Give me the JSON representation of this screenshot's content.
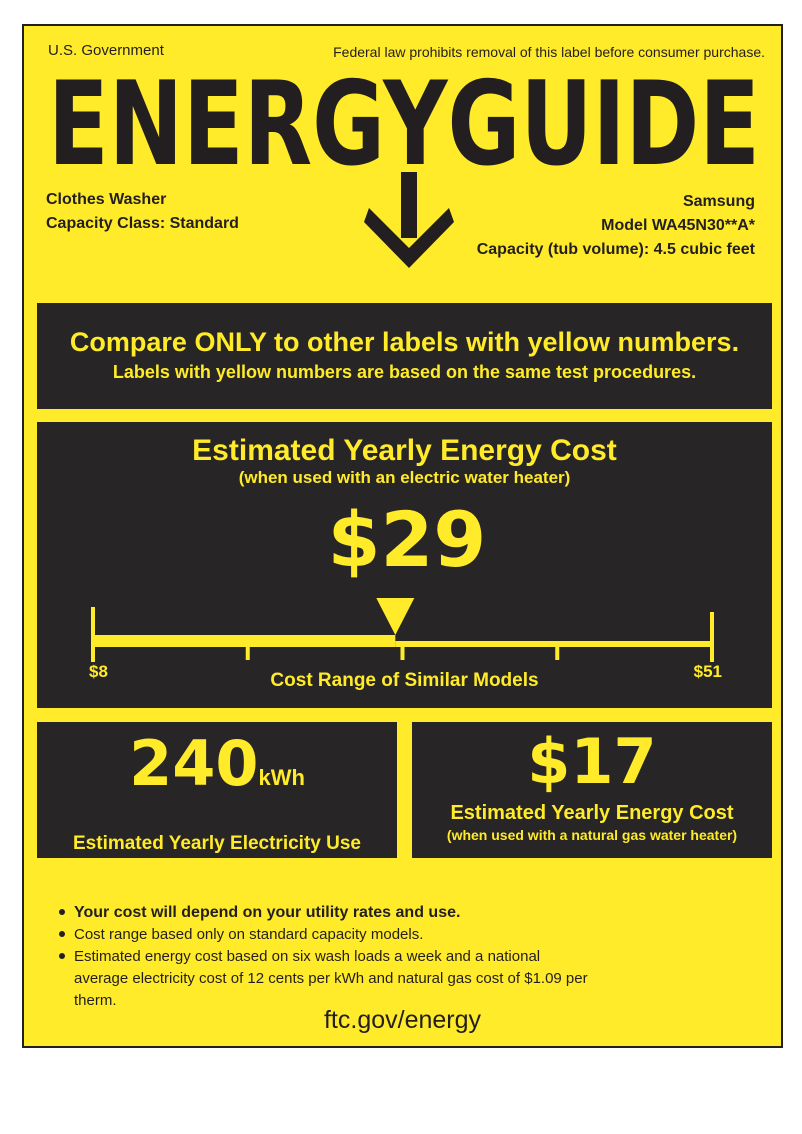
{
  "header": {
    "government": "U.S. Government",
    "notice": "Federal law prohibits removal of this label before consumer purchase.",
    "logo_text": "ENERGYGUIDE"
  },
  "product": {
    "type": "Clothes Washer",
    "capacity_class": "Capacity Class: Standard",
    "brand": "Samsung",
    "model": "Model WA45N30**A*",
    "capacity": "Capacity (tub volume): 4.5 cubic feet"
  },
  "compare": {
    "line1": "Compare ONLY to other labels with yellow numbers.",
    "line2": "Labels with yellow numbers are based on the same test procedures."
  },
  "cost": {
    "title": "Estimated Yearly Energy Cost",
    "subtitle": "(when used with an electric water heater)",
    "value": "$29",
    "value_number": 29,
    "range_min_label": "$8",
    "range_max_label": "$51",
    "range_min": 8,
    "range_max": 51,
    "range_caption": "Cost Range of Similar Models"
  },
  "electricity": {
    "value": "240",
    "unit": "kWh",
    "caption": "Estimated Yearly Electricity Use"
  },
  "gas": {
    "value": "$17",
    "caption": "Estimated Yearly Energy Cost",
    "subcaption": "(when used with a natural gas water heater)"
  },
  "notes": [
    "Your cost will depend on your utility rates and use.",
    "Cost range based only on standard capacity models.",
    "Estimated energy cost based on six wash loads a week and a national average electricity cost of 12 cents per kWh and natural gas cost of $1.09 per therm."
  ],
  "footer": {
    "link": "ftc.gov/energy"
  },
  "colors": {
    "label_yellow": "#FFEB2A",
    "panel_dark": "#272526"
  }
}
